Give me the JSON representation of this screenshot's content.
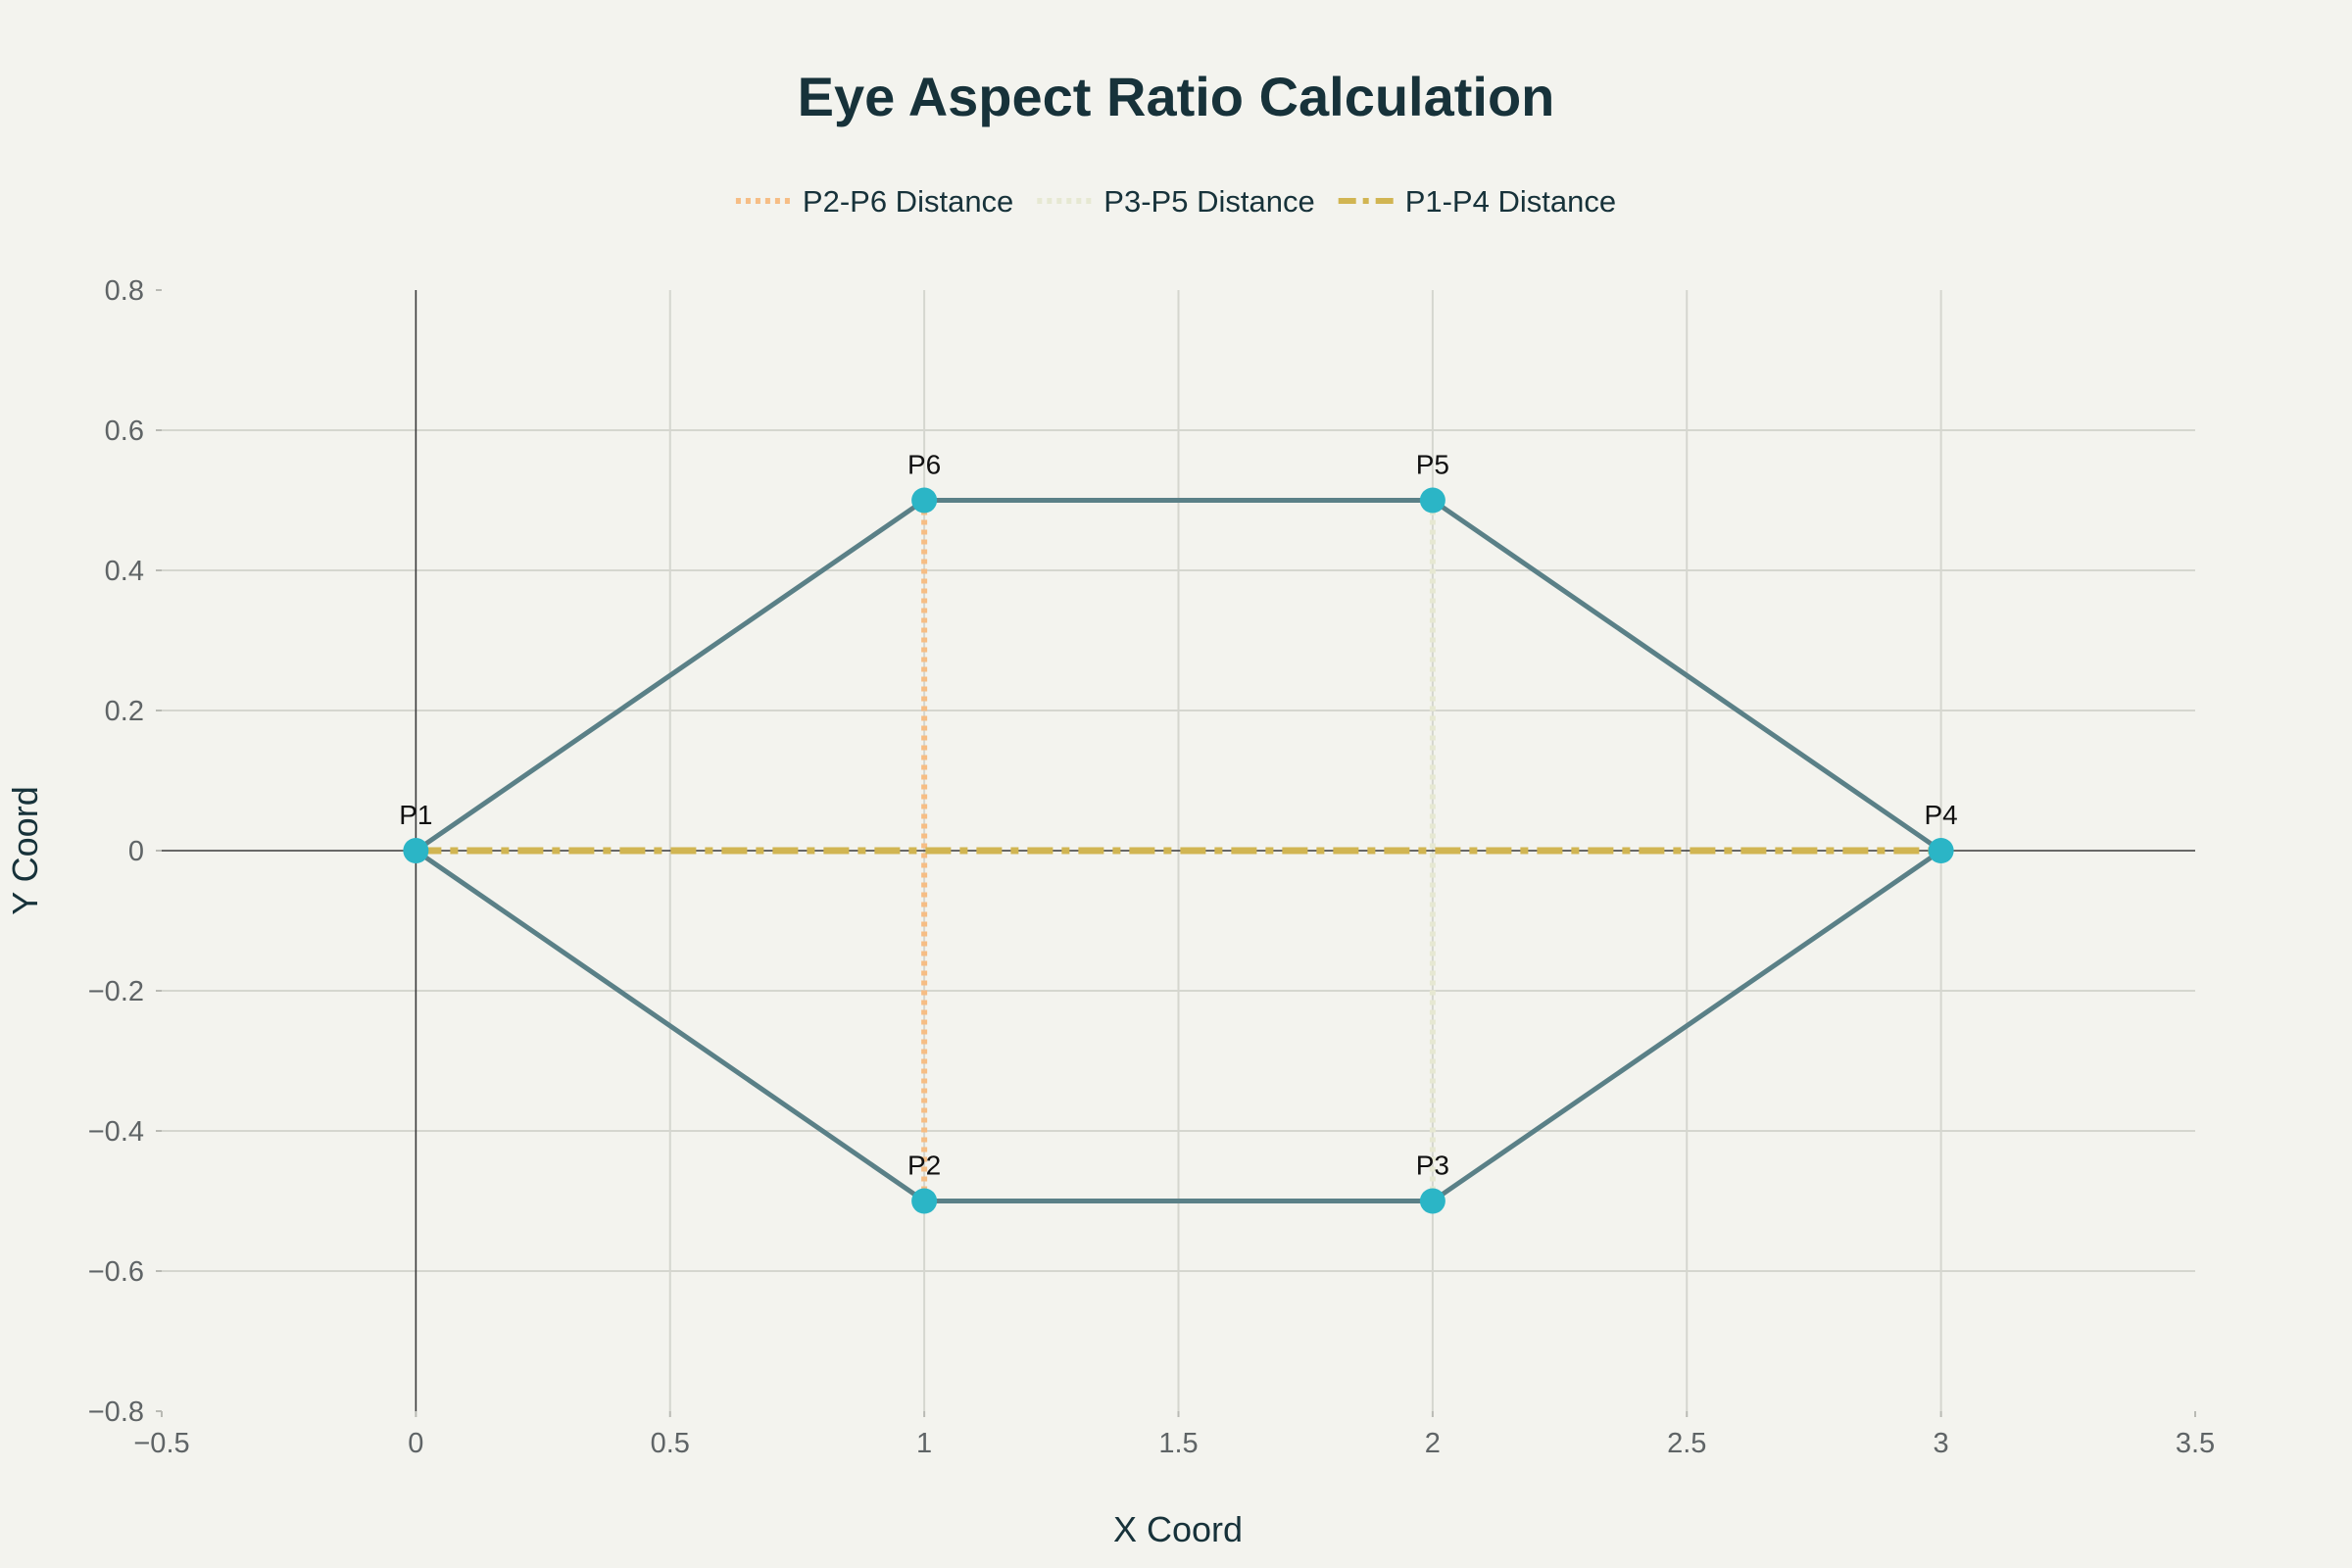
{
  "chart_data": {
    "type": "line",
    "title": "Eye Aspect Ratio Calculation",
    "xlabel": "X Coord",
    "ylabel": "Y Coord",
    "xlim": [
      -0.5,
      3.5
    ],
    "ylim": [
      -0.8,
      0.8
    ],
    "x_ticks": [
      -0.5,
      0,
      0.5,
      1,
      1.5,
      2,
      2.5,
      3,
      3.5
    ],
    "x_tick_labels": [
      "−0.5",
      "0",
      "0.5",
      "1",
      "1.5",
      "2",
      "2.5",
      "3",
      "3.5"
    ],
    "y_ticks": [
      -0.8,
      -0.6,
      -0.4,
      -0.2,
      0,
      0.2,
      0.4,
      0.6,
      0.8
    ],
    "y_tick_labels": [
      "−0.8",
      "−0.6",
      "−0.4",
      "−0.2",
      "0",
      "0.2",
      "0.4",
      "0.6",
      "0.8"
    ],
    "grid": true,
    "legend_position": "top-center",
    "eye_contour": {
      "color": "#5a8087",
      "marker_color": "#2bb5c6",
      "points": [
        {
          "label": "P1",
          "x": 0,
          "y": 0
        },
        {
          "label": "P2",
          "x": 1,
          "y": -0.5
        },
        {
          "label": "P3",
          "x": 2,
          "y": -0.5
        },
        {
          "label": "P4",
          "x": 3,
          "y": 0
        },
        {
          "label": "P5",
          "x": 2,
          "y": 0.5
        },
        {
          "label": "P6",
          "x": 1,
          "y": 0.5
        }
      ]
    },
    "series": [
      {
        "name": "P2-P6 Distance",
        "color": "#f6bd84",
        "dash": "dot",
        "x": [
          1,
          1
        ],
        "y": [
          -0.5,
          0.5
        ]
      },
      {
        "name": "P3-P5 Distance",
        "color": "#e6e8d2",
        "dash": "dot",
        "x": [
          2,
          2
        ],
        "y": [
          -0.5,
          0.5
        ]
      },
      {
        "name": "P1-P4 Distance",
        "color": "#d1b552",
        "dash": "dashdot",
        "x": [
          0,
          3
        ],
        "y": [
          0,
          0
        ]
      }
    ]
  }
}
